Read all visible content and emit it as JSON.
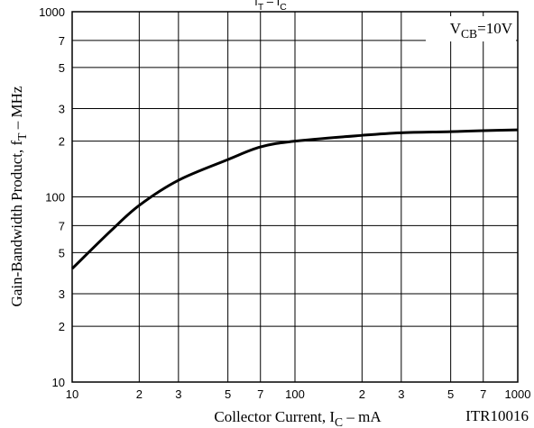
{
  "chart_data": {
    "type": "line",
    "title": [
      "f",
      "T",
      " – ",
      "I",
      "C"
    ],
    "xlabel": [
      "Collector Current, I",
      "C",
      " – mA"
    ],
    "ylabel": [
      "Gain-Bandwidth Product, f",
      "T",
      " – MHz"
    ],
    "annotation": [
      "V",
      "CB",
      "=10V"
    ],
    "code": "ITR10016",
    "x": [
      10,
      15,
      20,
      30,
      50,
      70,
      100,
      200,
      300,
      500,
      700,
      1000
    ],
    "values": [
      41,
      66,
      90,
      123,
      159,
      186,
      200,
      215,
      222,
      225,
      228,
      230
    ],
    "color": "#000000",
    "xscale": "log",
    "yscale": "log",
    "grid": true,
    "xlim": [
      10,
      1000
    ],
    "ylim": [
      10,
      1000
    ],
    "xticks": [
      10,
      {
        "value": 20,
        "label": "2"
      },
      {
        "value": 30,
        "label": "3"
      },
      {
        "value": 50,
        "label": "5"
      },
      {
        "value": 70,
        "label": "7"
      },
      100,
      {
        "value": 200,
        "label": "2"
      },
      {
        "value": 300,
        "label": "3"
      },
      {
        "value": 500,
        "label": "5"
      },
      {
        "value": 700,
        "label": "7"
      },
      1000
    ],
    "yticks": [
      10,
      {
        "value": 20,
        "label": "2"
      },
      {
        "value": 30,
        "label": "3"
      },
      {
        "value": 50,
        "label": "5"
      },
      {
        "value": 70,
        "label": "7"
      },
      100,
      {
        "value": 200,
        "label": "2"
      },
      {
        "value": 300,
        "label": "3"
      },
      {
        "value": 500,
        "label": "5"
      },
      {
        "value": 700,
        "label": "7"
      },
      1000
    ]
  }
}
